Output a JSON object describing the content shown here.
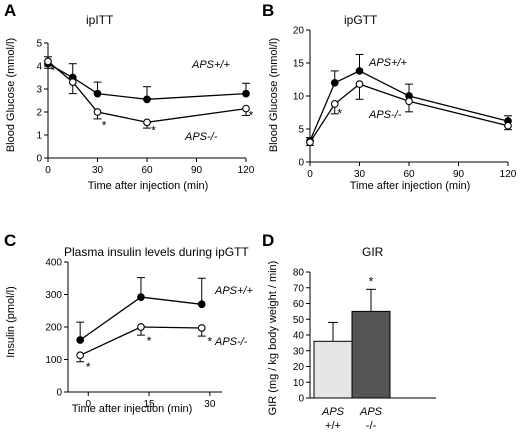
{
  "chart_data": [
    {
      "id": "A",
      "type": "line",
      "letter": "A",
      "title": "ipITT",
      "xlabel": "Time after injection (min)",
      "ylabel": "Blood Glucose (mmol/l)",
      "xlim": [
        0,
        120
      ],
      "ylim": [
        0,
        5
      ],
      "xticks": [
        0,
        30,
        60,
        90,
        120
      ],
      "yticks": [
        0,
        1,
        2,
        3,
        4,
        5
      ],
      "series": [
        {
          "name": "APS+/+",
          "marker": "filled",
          "x": [
            0,
            15,
            30,
            60,
            120
          ],
          "y": [
            4.1,
            3.5,
            2.8,
            2.55,
            2.8
          ],
          "err": [
            0.3,
            0.6,
            0.5,
            0.55,
            0.45
          ],
          "err_dir": "up"
        },
        {
          "name": "APS-/-",
          "marker": "open",
          "x": [
            0,
            15,
            30,
            60,
            120
          ],
          "y": [
            4.2,
            3.3,
            2.0,
            1.55,
            2.15
          ],
          "err": [
            0.3,
            0.5,
            0.3,
            0.25,
            0.3
          ],
          "err_dir": "down"
        }
      ],
      "annotations": [
        {
          "text": "*",
          "x": 3,
          "y": 3.85
        },
        {
          "text": "*",
          "x": 34,
          "y": 1.45
        },
        {
          "text": "*",
          "x": 64,
          "y": 1.25
        },
        {
          "text": "*",
          "x": 123,
          "y": 1.9
        }
      ]
    },
    {
      "id": "B",
      "type": "line",
      "letter": "B",
      "title": "ipGTT",
      "xlabel": "Time after injection (min)",
      "ylabel": "Blood Glucose (mmol/l)",
      "xlim": [
        0,
        120
      ],
      "ylim": [
        0,
        20
      ],
      "xticks": [
        0,
        30,
        60,
        90,
        120
      ],
      "yticks": [
        0,
        5,
        10,
        15,
        20
      ],
      "series": [
        {
          "name": "APS+/+",
          "marker": "filled",
          "x": [
            0,
            15,
            30,
            60,
            120
          ],
          "y": [
            3.2,
            12.0,
            13.8,
            10.0,
            6.2
          ],
          "err": [
            0.5,
            1.8,
            2.5,
            1.8,
            0.8
          ],
          "err_dir": "up"
        },
        {
          "name": "APS-/-",
          "marker": "open",
          "x": [
            0,
            15,
            30,
            60,
            120
          ],
          "y": [
            3.0,
            8.8,
            11.8,
            9.2,
            5.5
          ],
          "err": [
            0.5,
            1.5,
            2.3,
            1.6,
            0.6
          ],
          "err_dir": "down"
        }
      ],
      "annotations": [
        {
          "text": "*",
          "x": 18,
          "y": 7.5
        }
      ]
    },
    {
      "id": "C",
      "type": "line",
      "letter": "C",
      "title": "Plasma insulin levels during ipGTT",
      "xlabel": "Time after injection (min)",
      "ylabel": "Insulin (pmol/l)",
      "xlim": [
        -5,
        33
      ],
      "ylim": [
        0,
        400
      ],
      "xticks": [
        0,
        15,
        30
      ],
      "yticks": [
        0,
        100,
        200,
        300,
        400
      ],
      "series": [
        {
          "name": "APS+/+",
          "marker": "filled",
          "x": [
            -2,
            13,
            28
          ],
          "y": [
            160,
            292,
            270
          ],
          "err": [
            55,
            60,
            80
          ],
          "err_dir": "up"
        },
        {
          "name": "APS-/-",
          "marker": "open",
          "x": [
            -2,
            13,
            28
          ],
          "y": [
            113,
            200,
            197
          ],
          "err": [
            20,
            25,
            25
          ],
          "err_dir": "down"
        }
      ],
      "annotations": [
        {
          "text": "*",
          "x": 0,
          "y": 80
        },
        {
          "text": "*",
          "x": 15,
          "y": 160
        },
        {
          "text": "*",
          "x": 30,
          "y": 158
        }
      ]
    },
    {
      "id": "D",
      "type": "bar",
      "letter": "D",
      "title": "GIR",
      "xlabel": "",
      "ylabel": "GIR (mg / kg body weight / min)",
      "ylim": [
        0,
        80
      ],
      "yticks": [
        0,
        10,
        20,
        30,
        40,
        50,
        60,
        70,
        80
      ],
      "categories": [
        {
          "line1": "APS",
          "line2": "+/+"
        },
        {
          "line1": "APS",
          "line2": "-/-"
        }
      ],
      "values": [
        36,
        55
      ],
      "err": [
        12,
        14
      ],
      "colors": [
        "#e6e6e6",
        "#555555"
      ],
      "annotations": [
        {
          "text": "*",
          "bar": 1
        }
      ]
    }
  ]
}
